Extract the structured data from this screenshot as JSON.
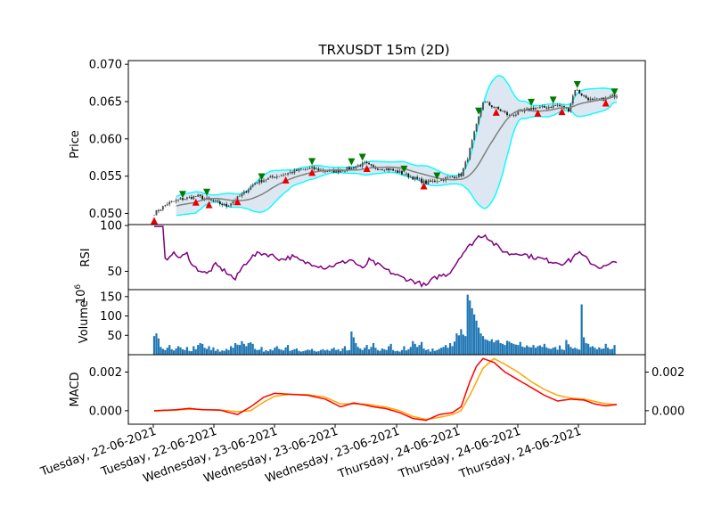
{
  "chart_data": {
    "type": "candlestick",
    "title": "TRXUSDT 15m (2D)",
    "x_tick_labels": [
      "Tuesday, 22-06-2021",
      "Tuesday, 22-06-2021",
      "Wednesday, 23-06-2021",
      "Wednesday, 23-06-2021",
      "Wednesday, 23-06-2021",
      "Thursday, 24-06-2021",
      "Thursday, 24-06-2021",
      "Thursday, 24-06-2021"
    ],
    "panels": {
      "price": {
        "ylabel": "Price",
        "ylim": [
          0.0485,
          0.0705
        ],
        "yticks": [
          0.05,
          0.055,
          0.06,
          0.065,
          0.07
        ],
        "ytick_labels": [
          "0.050",
          "0.055",
          "0.060",
          "0.065",
          "0.070"
        ],
        "close_anchors": [
          [
            0,
            0.05
          ],
          [
            6,
            0.0513
          ],
          [
            12,
            0.0519
          ],
          [
            20,
            0.0523
          ],
          [
            27,
            0.0516
          ],
          [
            33,
            0.051
          ],
          [
            40,
            0.0525
          ],
          [
            46,
            0.0541
          ],
          [
            53,
            0.0548
          ],
          [
            60,
            0.0553
          ],
          [
            66,
            0.0558
          ],
          [
            72,
            0.056
          ],
          [
            80,
            0.0556
          ],
          [
            86,
            0.0558
          ],
          [
            92,
            0.0563
          ],
          [
            96,
            0.0567
          ],
          [
            100,
            0.0561
          ],
          [
            106,
            0.056
          ],
          [
            112,
            0.0555
          ],
          [
            118,
            0.0548
          ],
          [
            124,
            0.0541
          ],
          [
            130,
            0.0545
          ],
          [
            136,
            0.0549
          ],
          [
            140,
            0.0552
          ],
          [
            143,
            0.0575
          ],
          [
            147,
            0.0618
          ],
          [
            150,
            0.065
          ],
          [
            154,
            0.0644
          ],
          [
            158,
            0.0638
          ],
          [
            162,
            0.0631
          ],
          [
            167,
            0.0635
          ],
          [
            172,
            0.0641
          ],
          [
            178,
            0.0642
          ],
          [
            184,
            0.0645
          ],
          [
            189,
            0.0639
          ],
          [
            192,
            0.0667
          ],
          [
            196,
            0.0657
          ],
          [
            200,
            0.0651
          ],
          [
            206,
            0.0654
          ],
          [
            211,
            0.0659
          ]
        ],
        "bollinger": {
          "colors": {
            "mid": "#808080",
            "band": "#00ffff",
            "fill": "#dde7f1"
          },
          "window": 20,
          "std_multiplier": 2
        },
        "buy_signals": [
          0,
          19,
          25,
          38,
          60,
          72,
          97,
          123,
          156,
          175,
          186,
          206
        ],
        "sell_signals": [
          13,
          24,
          49,
          72,
          90,
          95,
          114,
          129,
          148,
          172,
          182,
          193,
          210
        ],
        "buy_color": "#e80000",
        "sell_color": "#007a00"
      },
      "rsi": {
        "ylabel": "RSI",
        "ylim": [
          30,
          101
        ],
        "yticks": [
          50,
          100
        ],
        "ytick_labels": [
          "50",
          "100"
        ],
        "line_color": "#800080",
        "anchors": [
          [
            0,
            99
          ],
          [
            4,
            99
          ],
          [
            5,
            62
          ],
          [
            8,
            70
          ],
          [
            12,
            65
          ],
          [
            15,
            69
          ],
          [
            18,
            55
          ],
          [
            24,
            47
          ],
          [
            28,
            57
          ],
          [
            33,
            49
          ],
          [
            37,
            41
          ],
          [
            40,
            54
          ],
          [
            44,
            65
          ],
          [
            48,
            70
          ],
          [
            53,
            68
          ],
          [
            58,
            63
          ],
          [
            63,
            66
          ],
          [
            68,
            60
          ],
          [
            73,
            58
          ],
          [
            78,
            54
          ],
          [
            84,
            58
          ],
          [
            90,
            63
          ],
          [
            95,
            52
          ],
          [
            98,
            62
          ],
          [
            102,
            57
          ],
          [
            107,
            50
          ],
          [
            112,
            44
          ],
          [
            116,
            41
          ],
          [
            120,
            38
          ],
          [
            124,
            34
          ],
          [
            127,
            41
          ],
          [
            130,
            45
          ],
          [
            134,
            47
          ],
          [
            137,
            56
          ],
          [
            140,
            68
          ],
          [
            144,
            78
          ],
          [
            148,
            88
          ],
          [
            151,
            90
          ],
          [
            154,
            82
          ],
          [
            158,
            74
          ],
          [
            162,
            69
          ],
          [
            167,
            70
          ],
          [
            172,
            66
          ],
          [
            176,
            64
          ],
          [
            181,
            61
          ],
          [
            186,
            59
          ],
          [
            190,
            62
          ],
          [
            193,
            71
          ],
          [
            196,
            66
          ],
          [
            200,
            58
          ],
          [
            204,
            54
          ],
          [
            208,
            57
          ],
          [
            211,
            62
          ]
        ]
      },
      "volume": {
        "ylabel": "Volume",
        "scale_label": "10^6",
        "ylim": [
          0,
          168
        ],
        "yticks": [
          50,
          100,
          150
        ],
        "ytick_labels": [
          "50",
          "100",
          "150"
        ],
        "bar_color": "#1f77b4",
        "values": [
          48,
          55,
          42,
          20,
          15,
          12,
          18,
          25,
          14,
          11,
          16,
          22,
          19,
          14,
          12,
          20,
          10,
          9,
          22,
          14,
          25,
          30,
          28,
          18,
          15,
          22,
          12,
          19,
          10,
          14,
          8,
          11,
          10,
          15,
          12,
          22,
          18,
          30,
          26,
          25,
          35,
          28,
          22,
          30,
          32,
          28,
          15,
          12,
          13,
          20,
          8,
          12,
          9,
          14,
          11,
          18,
          22,
          15,
          13,
          11,
          19,
          25,
          10,
          12,
          14,
          16,
          10,
          8,
          9,
          11,
          13,
          12,
          15,
          10,
          8,
          9,
          12,
          14,
          11,
          13,
          10,
          15,
          18,
          12,
          14,
          9,
          16,
          22,
          11,
          12,
          60,
          45,
          30,
          20,
          16,
          12,
          18,
          25,
          14,
          20,
          30,
          18,
          12,
          10,
          16,
          14,
          12,
          22,
          28,
          12,
          9,
          10,
          8,
          12,
          22,
          11,
          14,
          20,
          35,
          28,
          20,
          25,
          33,
          16,
          12,
          14,
          8,
          16,
          10,
          12,
          15,
          18,
          20,
          25,
          18,
          30,
          22,
          34,
          55,
          50,
          66,
          52,
          48,
          155,
          140,
          120,
          104,
          88,
          70,
          55,
          48,
          40,
          38,
          35,
          40,
          32,
          37,
          38,
          30,
          28,
          25,
          36,
          34,
          30,
          28,
          26,
          25,
          33,
          21,
          19,
          24,
          20,
          19,
          25,
          18,
          22,
          24,
          20,
          28,
          19,
          16,
          15,
          18,
          20,
          13,
          24,
          14,
          12,
          38,
          27,
          20,
          16,
          18,
          15,
          13,
          130,
          45,
          30,
          28,
          20,
          22,
          18,
          14,
          19,
          15,
          16,
          28,
          18,
          14,
          15,
          25
        ]
      },
      "macd": {
        "ylabel": "MACD",
        "ylim": [
          -0.0007,
          0.0029
        ],
        "yticks": [
          0,
          0.002
        ],
        "ytick_labels": [
          "0.000",
          "0.002"
        ],
        "right_ytick_labels": [
          "0.000",
          "0.002"
        ],
        "macd_color": "#ff0000",
        "signal_color": "#ffa500",
        "macd_anchors": [
          [
            0,
            0.0
          ],
          [
            10,
            5e-05
          ],
          [
            16,
            0.00012
          ],
          [
            22,
            5e-05
          ],
          [
            30,
            3e-05
          ],
          [
            38,
            -0.0002
          ],
          [
            44,
            0.0002
          ],
          [
            50,
            0.0007
          ],
          [
            55,
            0.0009
          ],
          [
            62,
            0.00085
          ],
          [
            70,
            0.0008
          ],
          [
            78,
            0.0006
          ],
          [
            85,
            0.0002
          ],
          [
            91,
            0.0004
          ],
          [
            96,
            0.0003
          ],
          [
            100,
            0.0002
          ],
          [
            106,
            0.0001
          ],
          [
            112,
            -0.0001
          ],
          [
            118,
            -0.0004
          ],
          [
            124,
            -0.0005
          ],
          [
            130,
            -0.0002
          ],
          [
            136,
            -0.0001
          ],
          [
            140,
            0.0002
          ],
          [
            144,
            0.0015
          ],
          [
            147,
            0.0023
          ],
          [
            150,
            0.0027
          ],
          [
            155,
            0.0025
          ],
          [
            160,
            0.002
          ],
          [
            166,
            0.0016
          ],
          [
            172,
            0.0012
          ],
          [
            178,
            0.0008
          ],
          [
            184,
            0.0005
          ],
          [
            190,
            0.0006
          ],
          [
            196,
            0.00055
          ],
          [
            201,
            0.00035
          ],
          [
            206,
            0.00025
          ],
          [
            211,
            0.00032
          ]
        ],
        "signal_anchors": [
          [
            0,
            -2e-05
          ],
          [
            10,
            3e-05
          ],
          [
            16,
            8e-05
          ],
          [
            22,
            6e-05
          ],
          [
            30,
            4e-05
          ],
          [
            38,
            -5e-05
          ],
          [
            44,
            0.0
          ],
          [
            50,
            0.00045
          ],
          [
            55,
            0.00075
          ],
          [
            62,
            0.00085
          ],
          [
            70,
            0.00083
          ],
          [
            78,
            0.0007
          ],
          [
            85,
            0.00035
          ],
          [
            91,
            0.00035
          ],
          [
            96,
            0.00034
          ],
          [
            100,
            0.00028
          ],
          [
            106,
            0.00018
          ],
          [
            112,
            0.0
          ],
          [
            118,
            -0.0003
          ],
          [
            124,
            -0.00045
          ],
          [
            130,
            -0.00035
          ],
          [
            136,
            -0.0002
          ],
          [
            140,
            0.0
          ],
          [
            144,
            0.0008
          ],
          [
            147,
            0.0015
          ],
          [
            150,
            0.0022
          ],
          [
            155,
            0.0027
          ],
          [
            160,
            0.0024
          ],
          [
            166,
            0.002
          ],
          [
            172,
            0.0015
          ],
          [
            178,
            0.0011
          ],
          [
            184,
            0.0008
          ],
          [
            190,
            0.00065
          ],
          [
            196,
            0.0006
          ],
          [
            201,
            0.00048
          ],
          [
            206,
            0.00036
          ],
          [
            211,
            0.00032
          ]
        ]
      }
    }
  }
}
